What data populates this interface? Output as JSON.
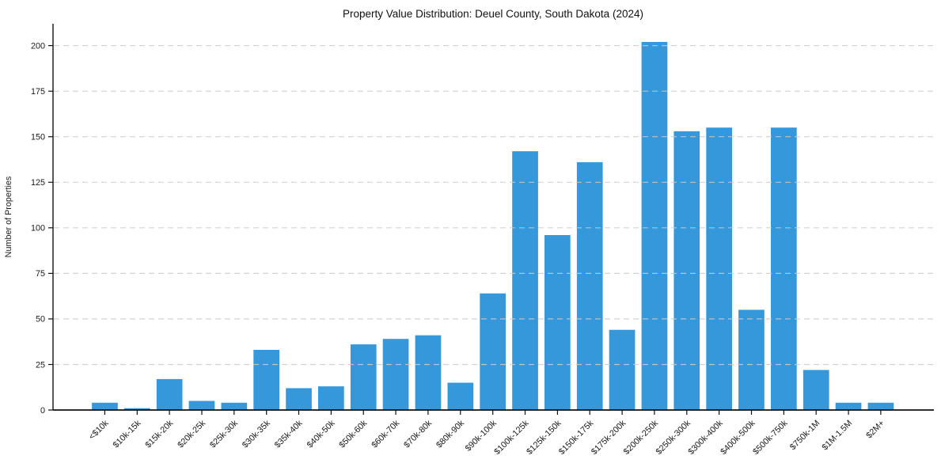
{
  "chart_data": {
    "type": "bar",
    "title": "Property Value Distribution: Deuel County, South Dakota (2024)",
    "xlabel": "",
    "ylabel": "Number of Properties",
    "categories": [
      "<$10k",
      "$10k-15k",
      "$15k-20k",
      "$20k-25k",
      "$25k-30k",
      "$30k-35k",
      "$35k-40k",
      "$40k-50k",
      "$50k-60k",
      "$60k-70k",
      "$70k-80k",
      "$80k-90k",
      "$90k-100k",
      "$100k-125k",
      "$125k-150k",
      "$150k-175k",
      "$175k-200k",
      "$200k-250k",
      "$250k-300k",
      "$300k-400k",
      "$400k-500k",
      "$500k-750k",
      "$750k-1M",
      "$1M-1.5M",
      "$2M+"
    ],
    "values": [
      4,
      1,
      17,
      5,
      4,
      33,
      12,
      13,
      36,
      39,
      41,
      15,
      64,
      142,
      96,
      136,
      44,
      202,
      153,
      155,
      55,
      155,
      22,
      4,
      4
    ],
    "yticks": [
      0,
      25,
      50,
      75,
      100,
      125,
      150,
      175,
      200
    ],
    "ylim": [
      0,
      212
    ],
    "bar_color": "#3498db",
    "gridline_color": "#cbcbcb",
    "axis_color": "#111111",
    "grid": "horizontal-dashed",
    "legend": "none"
  }
}
